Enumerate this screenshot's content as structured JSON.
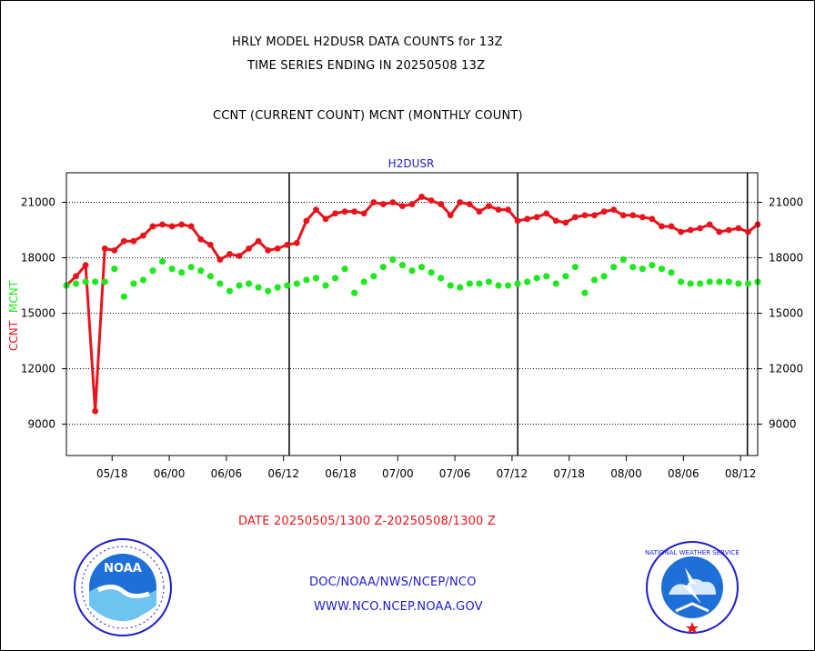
{
  "header": {
    "title_line1": "HRLY MODEL H2DUSR DATA COUNTS for 13Z",
    "title_line2": "TIME SERIES ENDING IN 20250508 13Z",
    "subtitle": "CCNT (CURRENT COUNT) MCNT (MONTHLY COUNT)"
  },
  "footer": {
    "date_range": "DATE 20250505/1300 Z-20250508/1300 Z",
    "org_path": "DOC/NOAA/NWS/NCEP/NCO",
    "website": "WWW.NCO.NCEP.NOAA.GOV"
  },
  "logos": {
    "noaa_text": "NOAA",
    "nws_text": "NATIONAL WEATHER SERVICE"
  },
  "colors": {
    "ccnt": "#e8141c",
    "mcnt": "#1ee81e",
    "title_blue": "#1c1ccc",
    "axis": "#000000"
  },
  "chart_data": {
    "type": "line",
    "title": "H2DUSR",
    "ylabel_ccnt": "CCNT",
    "ylabel_mcnt": "MCNT",
    "ylim": [
      7300,
      22600
    ],
    "y_ticks": [
      9000,
      12000,
      15000,
      18000,
      21000
    ],
    "x_ticks": [
      "05/18",
      "06/00",
      "06/06",
      "06/12",
      "06/18",
      "07/00",
      "07/06",
      "07/12",
      "07/18",
      "08/00",
      "08/06",
      "08/12"
    ],
    "x_tick_index": [
      7,
      17,
      27,
      37,
      47,
      57,
      67,
      77,
      87,
      97,
      107,
      117
    ],
    "day_boundaries_index": [
      38,
      78,
      118.2
    ],
    "x_range_index": [
      -1,
      120
    ],
    "grid": true,
    "series": [
      {
        "name": "CCNT",
        "color": "#e8141c",
        "values": [
          16500,
          17000,
          17600,
          9700,
          18500,
          18400,
          18900,
          18900,
          19200,
          19700,
          19800,
          19700,
          19800,
          19700,
          19000,
          18700,
          17900,
          18200,
          18100,
          18500,
          18900,
          18400,
          18500,
          18700,
          18800,
          20000,
          20600,
          20100,
          20400,
          20500,
          20500,
          20400,
          21000,
          20900,
          21000,
          20800,
          20900,
          21300,
          21100,
          20900,
          20300,
          21000,
          20900,
          20500,
          20800,
          20600,
          20600,
          20000,
          20100,
          20200,
          20400,
          20000,
          19900,
          20200,
          20300,
          20300,
          20500,
          20600,
          20300,
          20300,
          20200,
          20100,
          19700,
          19700,
          19400,
          19500,
          19600,
          19800,
          19400,
          19500,
          19600,
          19400,
          19800
        ]
      },
      {
        "name": "MCNT",
        "color": "#1ee81e",
        "values": [
          16500,
          16600,
          16700,
          16700,
          16700,
          17400,
          15900,
          16600,
          16800,
          17300,
          17800,
          17400,
          17200,
          17500,
          17300,
          17000,
          16600,
          16200,
          16500,
          16600,
          16400,
          16200,
          16400,
          16500,
          16600,
          16800,
          16900,
          16500,
          16900,
          17400,
          16100,
          16700,
          17000,
          17500,
          17900,
          17600,
          17300,
          17500,
          17200,
          16900,
          16500,
          16400,
          16600,
          16600,
          16700,
          16500,
          16500,
          16600,
          16700,
          16900,
          17000,
          16600,
          17000,
          17500,
          16100,
          16800,
          17000,
          17500,
          17900,
          17500,
          17400,
          17600,
          17400,
          17200,
          16700,
          16600,
          16600,
          16700,
          16700,
          16700,
          16600,
          16600,
          16700
        ]
      }
    ]
  }
}
